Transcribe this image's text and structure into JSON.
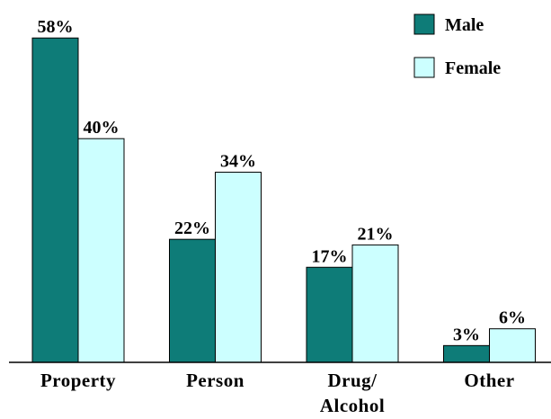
{
  "chart_data": {
    "type": "bar",
    "categories": [
      "Property",
      "Person",
      "Drug/\nAlcohol",
      "Other"
    ],
    "series": [
      {
        "name": "Male",
        "color": "#0e7c78",
        "values": [
          58,
          22,
          17,
          3
        ],
        "value_labels": [
          "58%",
          "22%",
          "17%",
          "3%"
        ]
      },
      {
        "name": "Female",
        "color": "#ccffff",
        "values": [
          40,
          34,
          21,
          6
        ],
        "value_labels": [
          "40%",
          "34%",
          "21%",
          "6%"
        ]
      }
    ],
    "legend": "upper right"
  }
}
